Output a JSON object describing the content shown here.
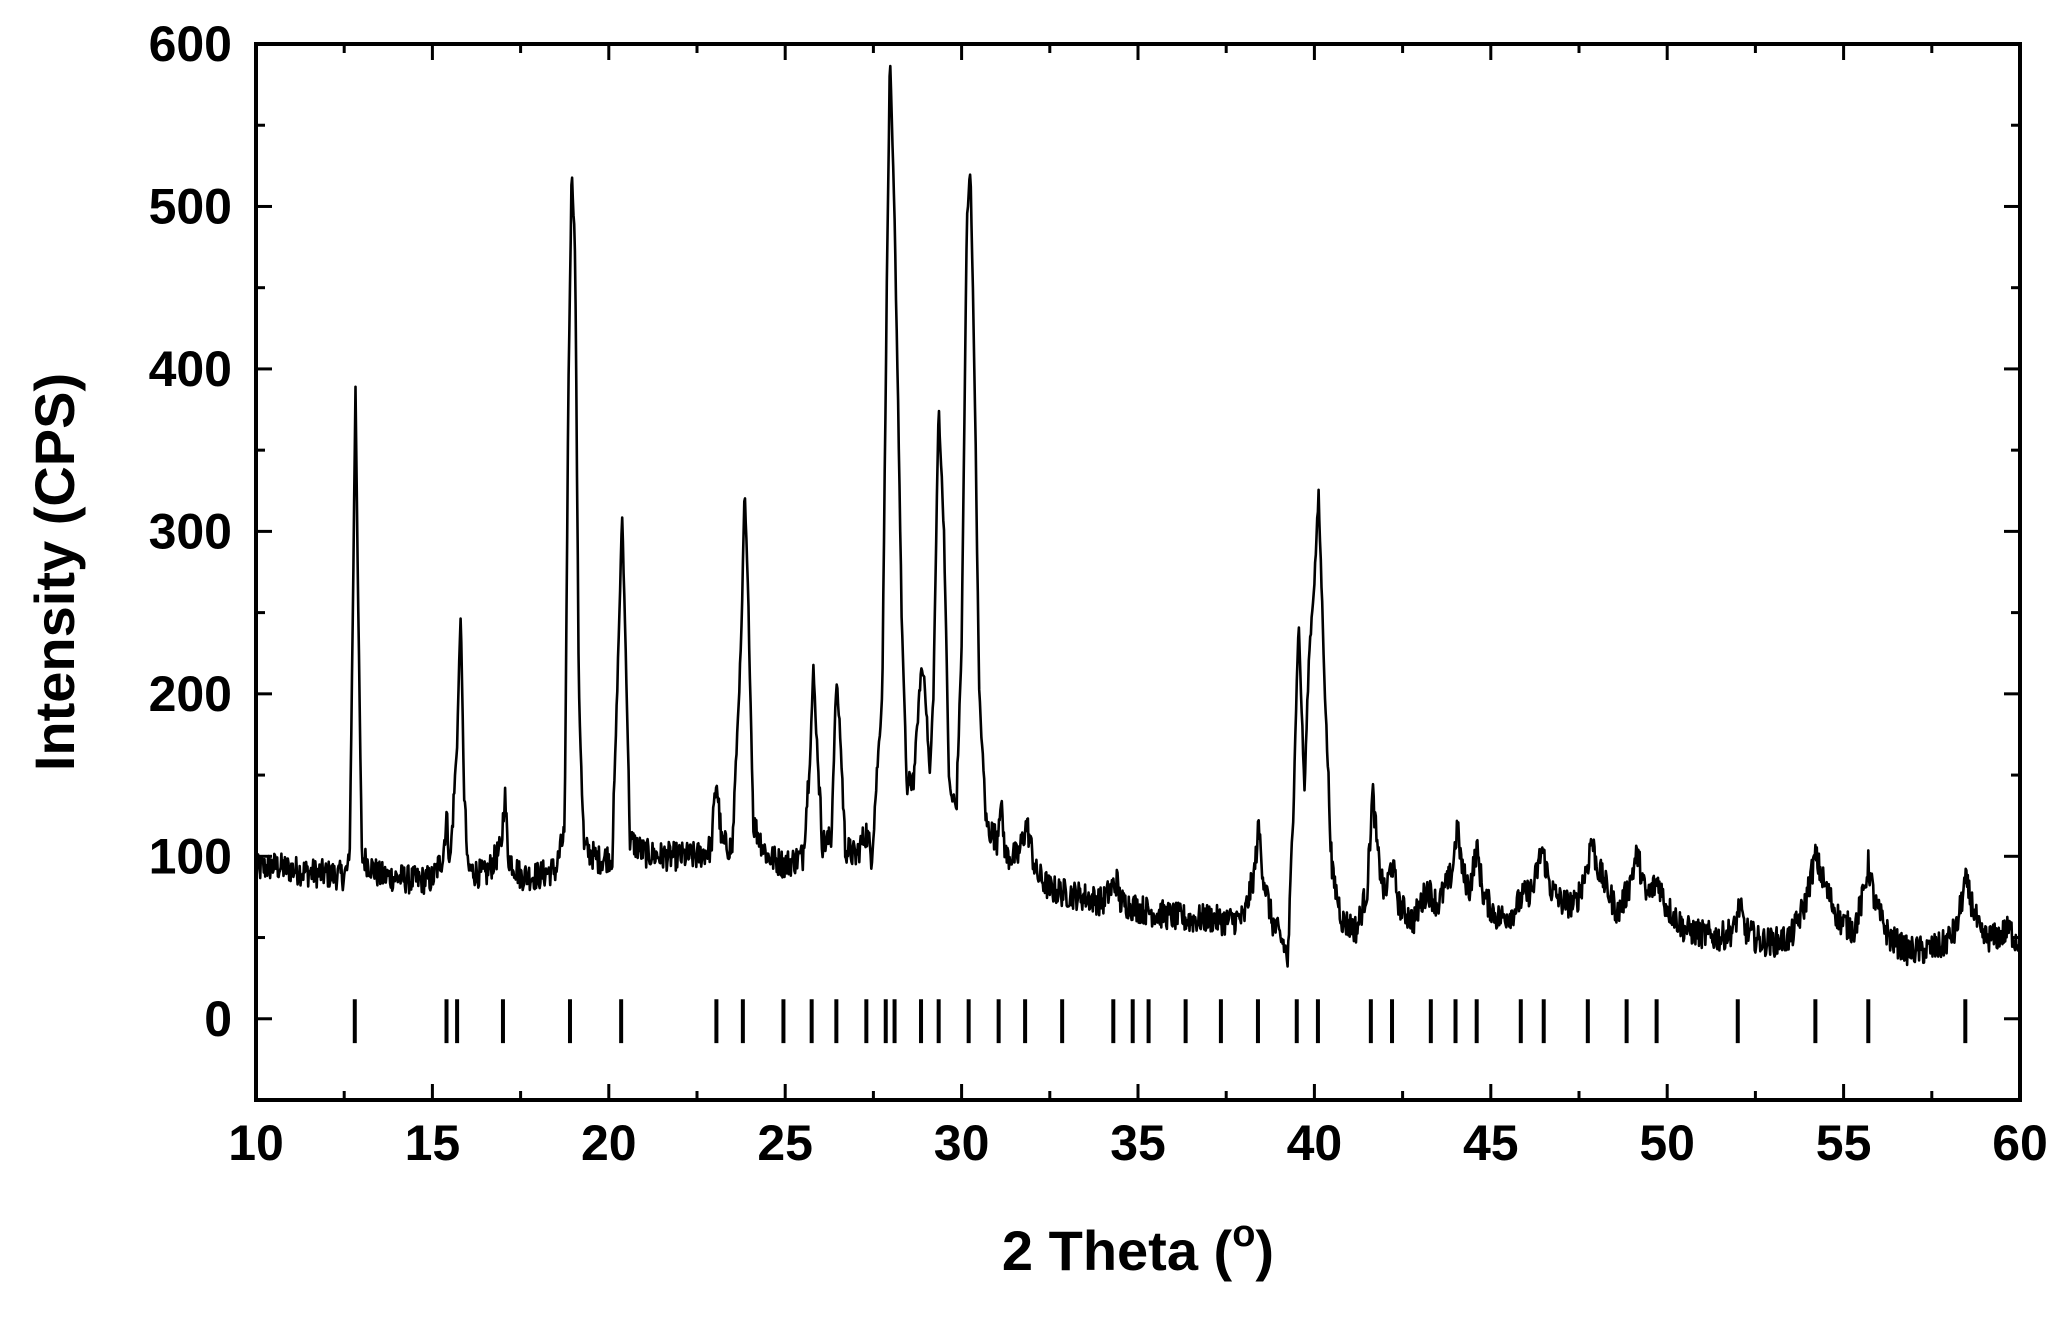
{
  "chart_data": {
    "type": "line",
    "title": "",
    "xlabel": "2 Theta (",
    "xlabel_sup": "o",
    "xlabel_end": ")",
    "ylabel": "Intensity (CPS)",
    "xlim": [
      10,
      60
    ],
    "ylim": [
      -50,
      600
    ],
    "x_ticks": [
      10,
      15,
      20,
      25,
      30,
      35,
      40,
      45,
      50,
      55,
      60
    ],
    "y_ticks": [
      0,
      100,
      200,
      300,
      400,
      500,
      600
    ],
    "grid": false,
    "legend": "none",
    "series": [
      {
        "points": [
          [
            10.0,
            92
          ],
          [
            10.5,
            94
          ],
          [
            11.0,
            92
          ],
          [
            11.5,
            90
          ],
          [
            12.0,
            89
          ],
          [
            12.5,
            88
          ],
          [
            12.65,
            95
          ],
          [
            12.75,
            260
          ],
          [
            12.82,
            390
          ],
          [
            12.9,
            250
          ],
          [
            13.0,
            100
          ],
          [
            13.5,
            88
          ],
          [
            14.0,
            87
          ],
          [
            14.5,
            85
          ],
          [
            15.0,
            86
          ],
          [
            15.3,
            100
          ],
          [
            15.4,
            125
          ],
          [
            15.5,
            95
          ],
          [
            15.7,
            170
          ],
          [
            15.8,
            250
          ],
          [
            15.9,
            140
          ],
          [
            16.0,
            92
          ],
          [
            16.5,
            88
          ],
          [
            16.95,
            105
          ],
          [
            17.05,
            140
          ],
          [
            17.15,
            100
          ],
          [
            17.5,
            88
          ],
          [
            18.0,
            88
          ],
          [
            18.5,
            92
          ],
          [
            18.75,
            115
          ],
          [
            18.85,
            380
          ],
          [
            18.95,
            525
          ],
          [
            19.05,
            470
          ],
          [
            19.15,
            200
          ],
          [
            19.3,
            105
          ],
          [
            19.7,
            98
          ],
          [
            20.1,
            100
          ],
          [
            20.3,
            250
          ],
          [
            20.38,
            310
          ],
          [
            20.5,
            210
          ],
          [
            20.6,
            110
          ],
          [
            21.0,
            102
          ],
          [
            21.5,
            100
          ],
          [
            22.0,
            100
          ],
          [
            22.5,
            100
          ],
          [
            22.9,
            105
          ],
          [
            23.05,
            148
          ],
          [
            23.2,
            108
          ],
          [
            23.5,
            105
          ],
          [
            23.75,
            230
          ],
          [
            23.85,
            325
          ],
          [
            23.95,
            260
          ],
          [
            24.1,
            120
          ],
          [
            24.5,
            100
          ],
          [
            25.0,
            95
          ],
          [
            25.5,
            100
          ],
          [
            25.7,
            160
          ],
          [
            25.8,
            215
          ],
          [
            25.9,
            170
          ],
          [
            26.05,
            108
          ],
          [
            26.3,
            110
          ],
          [
            26.45,
            208
          ],
          [
            26.55,
            180
          ],
          [
            26.7,
            105
          ],
          [
            27.0,
            100
          ],
          [
            27.3,
            115
          ],
          [
            27.45,
            100
          ],
          [
            27.75,
            200
          ],
          [
            27.88,
            450
          ],
          [
            27.97,
            592
          ],
          [
            28.1,
            490
          ],
          [
            28.2,
            380
          ],
          [
            28.3,
            250
          ],
          [
            28.45,
            140
          ],
          [
            28.65,
            150
          ],
          [
            28.85,
            215
          ],
          [
            28.95,
            210
          ],
          [
            29.1,
            150
          ],
          [
            29.2,
            200
          ],
          [
            29.35,
            378
          ],
          [
            29.5,
            300
          ],
          [
            29.65,
            140
          ],
          [
            29.85,
            130
          ],
          [
            30.0,
            230
          ],
          [
            30.15,
            490
          ],
          [
            30.25,
            525
          ],
          [
            30.38,
            380
          ],
          [
            30.5,
            200
          ],
          [
            30.7,
            120
          ],
          [
            31.0,
            110
          ],
          [
            31.1,
            135
          ],
          [
            31.25,
            100
          ],
          [
            31.6,
            100
          ],
          [
            31.85,
            120
          ],
          [
            32.1,
            90
          ],
          [
            32.5,
            80
          ],
          [
            33.0,
            77
          ],
          [
            33.5,
            75
          ],
          [
            34.0,
            72
          ],
          [
            34.4,
            85
          ],
          [
            34.5,
            72
          ],
          [
            35.0,
            68
          ],
          [
            35.5,
            65
          ],
          [
            36.0,
            63
          ],
          [
            36.5,
            61
          ],
          [
            37.0,
            62
          ],
          [
            37.5,
            60
          ],
          [
            38.0,
            62
          ],
          [
            38.3,
            90
          ],
          [
            38.42,
            118
          ],
          [
            38.55,
            88
          ],
          [
            38.8,
            60
          ],
          [
            39.15,
            45
          ],
          [
            39.25,
            35
          ],
          [
            39.4,
            130
          ],
          [
            39.55,
            245
          ],
          [
            39.72,
            140
          ],
          [
            39.85,
            225
          ],
          [
            40.0,
            270
          ],
          [
            40.12,
            322
          ],
          [
            40.3,
            200
          ],
          [
            40.5,
            90
          ],
          [
            40.8,
            60
          ],
          [
            41.2,
            55
          ],
          [
            41.5,
            80
          ],
          [
            41.65,
            140
          ],
          [
            41.8,
            100
          ],
          [
            42.0,
            75
          ],
          [
            42.2,
            97
          ],
          [
            42.4,
            70
          ],
          [
            42.8,
            60
          ],
          [
            43.2,
            80
          ],
          [
            43.5,
            70
          ],
          [
            43.9,
            90
          ],
          [
            44.05,
            118
          ],
          [
            44.2,
            90
          ],
          [
            44.4,
            80
          ],
          [
            44.6,
            105
          ],
          [
            44.8,
            75
          ],
          [
            45.2,
            62
          ],
          [
            45.6,
            65
          ],
          [
            45.9,
            75
          ],
          [
            46.2,
            80
          ],
          [
            46.45,
            105
          ],
          [
            46.7,
            80
          ],
          [
            47.0,
            72
          ],
          [
            47.4,
            70
          ],
          [
            47.75,
            95
          ],
          [
            47.85,
            112
          ],
          [
            48.0,
            95
          ],
          [
            48.3,
            80
          ],
          [
            48.6,
            65
          ],
          [
            48.9,
            80
          ],
          [
            49.15,
            102
          ],
          [
            49.4,
            75
          ],
          [
            49.75,
            85
          ],
          [
            49.95,
            70
          ],
          [
            50.5,
            55
          ],
          [
            51.0,
            52
          ],
          [
            51.5,
            50
          ],
          [
            51.9,
            55
          ],
          [
            52.05,
            70
          ],
          [
            52.2,
            55
          ],
          [
            52.6,
            48
          ],
          [
            53.0,
            47
          ],
          [
            53.5,
            50
          ],
          [
            53.9,
            70
          ],
          [
            54.2,
            100
          ],
          [
            54.5,
            80
          ],
          [
            54.9,
            60
          ],
          [
            55.3,
            55
          ],
          [
            55.55,
            75
          ],
          [
            55.7,
            95
          ],
          [
            55.9,
            70
          ],
          [
            56.3,
            50
          ],
          [
            56.8,
            42
          ],
          [
            57.3,
            42
          ],
          [
            57.8,
            45
          ],
          [
            58.2,
            55
          ],
          [
            58.45,
            85
          ],
          [
            58.65,
            70
          ],
          [
            58.9,
            50
          ],
          [
            59.3,
            50
          ],
          [
            59.7,
            55
          ],
          [
            60.0,
            45
          ]
        ]
      }
    ],
    "reference_peaks": [
      12.8,
      15.4,
      15.7,
      17.0,
      18.9,
      20.35,
      23.05,
      23.8,
      24.95,
      25.75,
      26.45,
      27.3,
      27.85,
      28.1,
      28.85,
      29.35,
      30.2,
      31.05,
      31.8,
      32.85,
      34.3,
      34.85,
      35.3,
      36.35,
      37.35,
      38.4,
      39.5,
      40.1,
      41.6,
      42.2,
      43.3,
      44.0,
      44.6,
      45.85,
      46.5,
      47.75,
      48.85,
      49.7,
      52.0,
      54.2,
      55.7,
      58.45
    ],
    "reference_peak_range": [
      -15,
      12
    ]
  }
}
